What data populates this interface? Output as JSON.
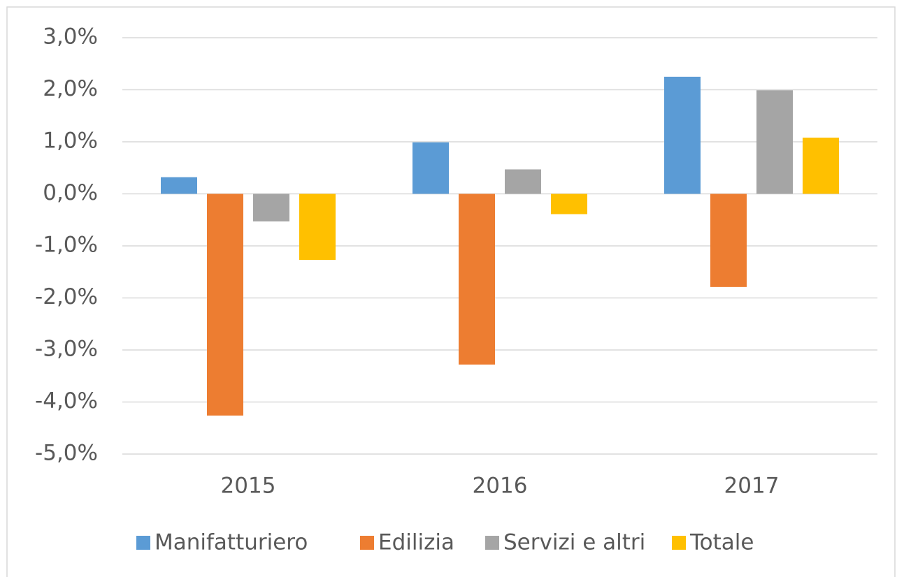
{
  "chart_data": {
    "type": "bar",
    "categories": [
      "2015",
      "2016",
      "2017"
    ],
    "series": [
      {
        "name": "Manifatturiero",
        "color": "#5b9bd5",
        "values": [
          0.32,
          0.99,
          2.25
        ]
      },
      {
        "name": "Edilizia",
        "color": "#ed7d31",
        "values": [
          -4.26,
          -3.28,
          -1.79
        ]
      },
      {
        "name": "Servizi e altri",
        "color": "#a5a5a5",
        "values": [
          -0.53,
          0.47,
          1.99
        ]
      },
      {
        "name": "Totale",
        "color": "#ffc000",
        "values": [
          -1.27,
          -0.39,
          1.08
        ]
      }
    ],
    "ylim": [
      -5,
      3
    ],
    "yticks": [
      {
        "value": -5,
        "label": "-5,0%"
      },
      {
        "value": -4,
        "label": "-4,0%"
      },
      {
        "value": -3,
        "label": "-3,0%"
      },
      {
        "value": -2,
        "label": "-2,0%"
      },
      {
        "value": -1,
        "label": "-1,0%"
      },
      {
        "value": 0,
        "label": "0,0%"
      },
      {
        "value": 1,
        "label": "1,0%"
      },
      {
        "value": 2,
        "label": "2,0%"
      },
      {
        "value": 3,
        "label": "3,0%"
      }
    ],
    "grid": true,
    "legend": "bottom"
  }
}
